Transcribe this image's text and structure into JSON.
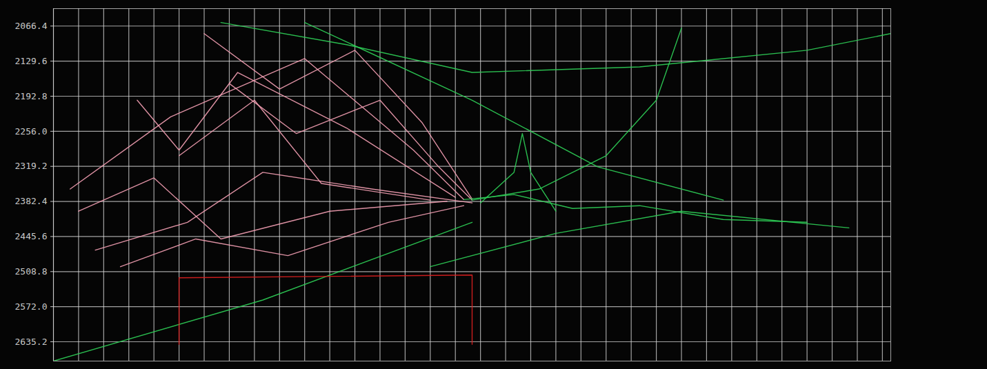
{
  "chart_data": {
    "type": "line",
    "xlim": [
      0,
      100
    ],
    "xticks": [
      0,
      3,
      6,
      9,
      12,
      15,
      18,
      21,
      24,
      27,
      30,
      33,
      36,
      39,
      42,
      45,
      48,
      51,
      54,
      57,
      60,
      63,
      66,
      69,
      72,
      75,
      78,
      81,
      84,
      87,
      90,
      93,
      96,
      99
    ],
    "ylim": [
      2670,
      2035
    ],
    "yticks": [
      2066.4,
      2129.6,
      2192.8,
      {
        "value": 2256,
        "label": "2256.0"
      },
      2319.2,
      2382.4,
      2445.6,
      2508.8,
      {
        "value": 2572,
        "label": "2572.0"
      },
      2635.2
    ],
    "grid": true,
    "tick_labels": "y",
    "series": [
      {
        "color": "#f4a0b4",
        "x": [
          2,
          14,
          30,
          43,
          49
        ],
        "values": [
          2360,
          2230,
          2125,
          2290,
          2379
        ]
      },
      {
        "color": "#f4a0b4",
        "x": [
          5,
          16,
          25,
          38,
          50
        ],
        "values": [
          2470,
          2420,
          2330,
          2360,
          2385
        ]
      },
      {
        "color": "#f4a0b4",
        "x": [
          10,
          15,
          22,
          35,
          48
        ],
        "values": [
          2200,
          2290,
          2150,
          2250,
          2375
        ]
      },
      {
        "color": "#f4a0b4",
        "x": [
          3,
          12,
          20,
          33,
          47
        ],
        "values": [
          2400,
          2340,
          2450,
          2400,
          2382
        ]
      },
      {
        "color": "#f4a0b4",
        "x": [
          18,
          27,
          36,
          44,
          50
        ],
        "values": [
          2080,
          2180,
          2110,
          2240,
          2378
        ]
      },
      {
        "color": "#f4a0b4",
        "x": [
          8,
          17,
          28,
          40,
          49
        ],
        "values": [
          2500,
          2450,
          2480,
          2420,
          2390
        ]
      },
      {
        "color": "#f4a0b4",
        "x": [
          15,
          24,
          32,
          45
        ],
        "values": [
          2300,
          2200,
          2350,
          2380
        ]
      },
      {
        "color": "#f4a0b4",
        "x": [
          21,
          29,
          39,
          46,
          50
        ],
        "values": [
          2170,
          2260,
          2200,
          2320,
          2380
        ]
      },
      {
        "color": "#2fd158",
        "x": [
          49,
          55,
          62,
          70,
          80,
          90
        ],
        "values": [
          2379,
          2370,
          2395,
          2390,
          2415,
          2420
        ]
      },
      {
        "color": "#2fd158",
        "x": [
          50,
          58,
          66,
          72,
          75
        ],
        "values": [
          2380,
          2360,
          2300,
          2200,
          2070
        ]
      },
      {
        "color": "#2fd158",
        "x": [
          51,
          55,
          56,
          57,
          60
        ],
        "values": [
          2385,
          2330,
          2260,
          2330,
          2400
        ]
      },
      {
        "color": "#2fd158",
        "x": [
          20,
          35,
          50,
          70,
          90,
          100
        ],
        "values": [
          2060,
          2100,
          2150,
          2140,
          2110,
          2080
        ]
      },
      {
        "color": "#2fd158",
        "x": [
          0,
          25,
          50
        ],
        "values": [
          2670,
          2560,
          2420
        ]
      },
      {
        "color": "#2fd158",
        "x": [
          30,
          50,
          65,
          80
        ],
        "values": [
          2060,
          2200,
          2320,
          2380
        ]
      },
      {
        "color": "#2fd158",
        "x": [
          45,
          60,
          75,
          95
        ],
        "values": [
          2500,
          2440,
          2400,
          2430
        ]
      },
      {
        "color": "#e02020",
        "x": [
          15,
          15,
          50,
          50
        ],
        "values": [
          2640,
          2520,
          2515,
          2640
        ]
      }
    ]
  }
}
